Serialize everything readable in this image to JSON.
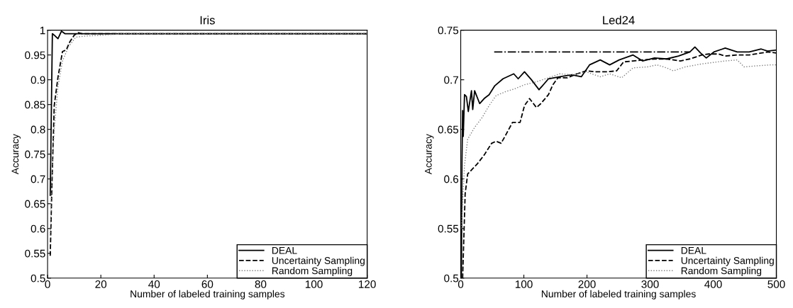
{
  "chart_data": [
    {
      "type": "line",
      "title": "Iris",
      "xlabel": "Number of labeled training samples",
      "ylabel": "Accuracy",
      "xlim": [
        0,
        120
      ],
      "xticks": [
        0,
        20,
        40,
        60,
        80,
        100,
        120
      ],
      "ylim": [
        0.5,
        1
      ],
      "yticks": [
        0.5,
        0.55,
        0.6,
        0.65,
        0.7,
        0.75,
        0.8,
        0.85,
        0.9,
        0.95,
        1
      ],
      "legend": "bottom right",
      "grid": false,
      "series": [
        {
          "name": "DEAL",
          "color": "#000000",
          "line_style": "solid",
          "x": [
            1,
            1.8,
            2.5,
            3.9,
            5.2,
            6.5,
            120
          ],
          "values": [
            0.667,
            0.993,
            0.99,
            0.983,
            0.998,
            0.993,
            0.993
          ]
        },
        {
          "name": "Uncertainty Sampling",
          "color": "#000000",
          "line_style": "dashed",
          "x": [
            1,
            1.6,
            2.5,
            3.9,
            5.6,
            7,
            8.3,
            10,
            11.5,
            13,
            120
          ],
          "values": [
            0.545,
            0.681,
            0.848,
            0.905,
            0.957,
            0.96,
            0.976,
            0.99,
            0.995,
            0.993,
            0.993
          ]
        },
        {
          "name": "Random Sampling",
          "color": "#808080",
          "line_style": "dotted",
          "x": [
            1,
            1.6,
            2.5,
            3.9,
            5.6,
            7.9,
            10.6,
            14,
            20.4,
            28.5,
            120
          ],
          "values": [
            0.586,
            0.705,
            0.8,
            0.886,
            0.938,
            0.967,
            0.986,
            0.988,
            0.99,
            0.993,
            0.993
          ]
        }
      ]
    },
    {
      "type": "line",
      "title": "Led24",
      "xlabel": "Number of labeled training samples",
      "ylabel": "Accuracy",
      "xlim": [
        0,
        500
      ],
      "xticks": [
        0,
        100,
        200,
        300,
        400,
        500
      ],
      "ylim": [
        0.5,
        0.75
      ],
      "yticks": [
        0.5,
        0.55,
        0.6,
        0.65,
        0.7,
        0.75
      ],
      "legend": "bottom right",
      "grid": false,
      "series": [
        {
          "name": "DEAL",
          "color": "#000000",
          "line_style": "solid",
          "x": [
            1,
            2,
            3,
            4,
            6,
            9,
            12,
            17,
            19,
            22,
            30,
            37,
            45,
            54,
            67,
            84,
            91,
            101,
            112,
            124,
            139,
            157,
            176,
            191,
            204,
            221,
            236,
            251,
            273,
            288,
            307,
            326,
            345,
            363,
            371,
            380,
            389,
            401,
            419,
            438,
            457,
            476,
            486,
            500
          ],
          "values": [
            0.5,
            0.62,
            0.669,
            0.643,
            0.685,
            0.683,
            0.668,
            0.689,
            0.67,
            0.689,
            0.676,
            0.681,
            0.685,
            0.694,
            0.701,
            0.706,
            0.701,
            0.708,
            0.7,
            0.69,
            0.701,
            0.703,
            0.705,
            0.703,
            0.715,
            0.72,
            0.715,
            0.72,
            0.725,
            0.719,
            0.722,
            0.721,
            0.724,
            0.728,
            0.733,
            0.727,
            0.722,
            0.728,
            0.732,
            0.728,
            0.728,
            0.731,
            0.729,
            0.73
          ]
        },
        {
          "name": "Uncertainty Sampling",
          "color": "#000000",
          "line_style": "dashed",
          "x": [
            3,
            7,
            11,
            17,
            26,
            37,
            49,
            56,
            64,
            71,
            82,
            94,
            101,
            109,
            120,
            127,
            139,
            146,
            154,
            169,
            184,
            199,
            213,
            232,
            247,
            258,
            273,
            288,
            307,
            326,
            348,
            363,
            382,
            393,
            408,
            419,
            438,
            457,
            476,
            487,
            500
          ],
          "values": [
            0.5,
            0.585,
            0.605,
            0.609,
            0.615,
            0.624,
            0.636,
            0.638,
            0.636,
            0.644,
            0.657,
            0.657,
            0.674,
            0.681,
            0.672,
            0.676,
            0.685,
            0.695,
            0.702,
            0.702,
            0.706,
            0.709,
            0.708,
            0.708,
            0.709,
            0.718,
            0.719,
            0.72,
            0.721,
            0.721,
            0.719,
            0.721,
            0.725,
            0.726,
            0.726,
            0.724,
            0.725,
            0.725,
            0.727,
            0.728,
            0.727
          ]
        },
        {
          "name": "Random Sampling",
          "color": "#808080",
          "line_style": "dotted",
          "x": [
            1,
            6,
            11,
            22,
            34,
            45,
            56,
            71,
            86,
            101,
            120,
            139,
            157,
            176,
            199,
            221,
            236,
            255,
            273,
            296,
            311,
            326,
            337,
            356,
            382,
            419,
            438,
            449,
            468,
            491,
            500
          ],
          "values": [
            0.55,
            0.614,
            0.64,
            0.652,
            0.662,
            0.674,
            0.684,
            0.688,
            0.691,
            0.695,
            0.698,
            0.702,
            0.706,
            0.705,
            0.708,
            0.703,
            0.706,
            0.702,
            0.712,
            0.713,
            0.715,
            0.712,
            0.709,
            0.713,
            0.716,
            0.719,
            0.72,
            0.713,
            0.714,
            0.715,
            0.715
          ]
        },
        {
          "color": "#000000",
          "line_style": "dashdot",
          "x": [
            53,
            363
          ],
          "values": [
            0.728,
            0.728
          ]
        }
      ]
    }
  ]
}
